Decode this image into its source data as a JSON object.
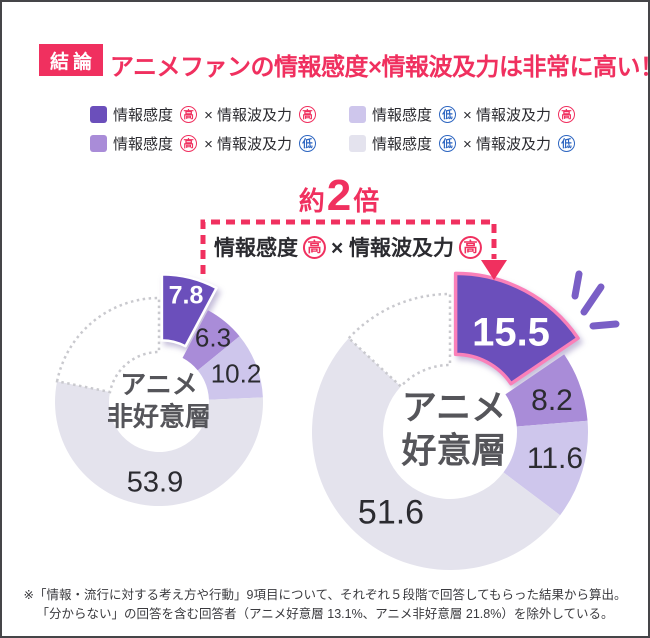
{
  "header": {
    "badge": "結論",
    "title": "アニメファンの情報感度×情報波及力は非常に高い！"
  },
  "legend": {
    "items": [
      {
        "swatch": "#6B4FBB",
        "parts": [
          {
            "text": "情報感度"
          },
          {
            "badge": "高",
            "level": "high"
          },
          {
            "text": "× 情報波及力"
          },
          {
            "badge": "高",
            "level": "high"
          }
        ]
      },
      {
        "swatch": "#CEC6EC",
        "parts": [
          {
            "text": "情報感度"
          },
          {
            "badge": "低",
            "level": "low"
          },
          {
            "text": "× 情報波及力"
          },
          {
            "badge": "高",
            "level": "high"
          }
        ]
      },
      {
        "swatch": "#A98CD8",
        "parts": [
          {
            "text": "情報感度"
          },
          {
            "badge": "高",
            "level": "high"
          },
          {
            "text": "× 情報波及力"
          },
          {
            "badge": "低",
            "level": "low"
          }
        ]
      },
      {
        "swatch": "#E4E3EE",
        "parts": [
          {
            "text": "情報感度"
          },
          {
            "badge": "低",
            "level": "low"
          },
          {
            "text": "× 情報波及力"
          },
          {
            "badge": "低",
            "level": "low"
          }
        ]
      }
    ]
  },
  "annotation": {
    "ratio_prefix": "約",
    "ratio_number": "2",
    "ratio_suffix": "倍",
    "bracket_label_parts": [
      {
        "text": "情報感度"
      },
      {
        "badge": "高",
        "level": "high"
      },
      {
        "text": "× 情報波及力"
      },
      {
        "badge": "高",
        "level": "high"
      }
    ]
  },
  "chart_data": [
    {
      "type": "pie",
      "variant": "donut",
      "title": "アニメ非好意層",
      "center_label_lines": [
        "アニメ",
        "非好意層"
      ],
      "unit": "%",
      "segments": [
        {
          "label": "情報感度高×情報波及力高",
          "value": 7.8,
          "color": "#6B4FBB",
          "exploded": true
        },
        {
          "label": "情報感度高×情報波及力低",
          "value": 6.3,
          "color": "#A98CD8"
        },
        {
          "label": "情報感度低×情報波及力高",
          "value": 10.2,
          "color": "#CEC6EC"
        },
        {
          "label": "情報感度低×情報波及力低",
          "value": 53.9,
          "color": "#E4E3ED"
        },
        {
          "label": "除外（分からない回答を含む）",
          "value": 21.8,
          "excluded": true
        }
      ]
    },
    {
      "type": "pie",
      "variant": "donut",
      "title": "アニメ好意層",
      "center_label_lines": [
        "アニメ",
        "好意層"
      ],
      "unit": "%",
      "segments": [
        {
          "label": "情報感度高×情報波及力高",
          "value": 15.5,
          "color": "#6B4FBB",
          "exploded": true
        },
        {
          "label": "情報感度高×情報波及力低",
          "value": 8.2,
          "color": "#A98CD8"
        },
        {
          "label": "情報感度低×情報波及力高",
          "value": 11.6,
          "color": "#CEC6EC"
        },
        {
          "label": "情報感度低×情報波及力低",
          "value": 51.6,
          "color": "#E4E3ED"
        },
        {
          "label": "除外（分からない回答を含む）",
          "value": 13.1,
          "excluded": true
        }
      ]
    }
  ],
  "footnote": {
    "line1": "※「情報・流行に対する考え方や行動」9項目について、それぞれ５段階で回答してもらった結果から算出。",
    "line2": "「分からない」の回答を含む回答者（アニメ好意層 13.1%、アニメ非好意層 21.8%）を除外している。"
  },
  "colors": {
    "accent_pink": "#F0305F",
    "low_blue": "#2E66C1",
    "sparkle_purple": "#7A5FC6",
    "explode_outline_pink": "#FA80B9",
    "excluded_dash_gray": "#C9C9CE",
    "value_label_dark": "#2B2B30",
    "center_label_gray": "#55555A"
  }
}
